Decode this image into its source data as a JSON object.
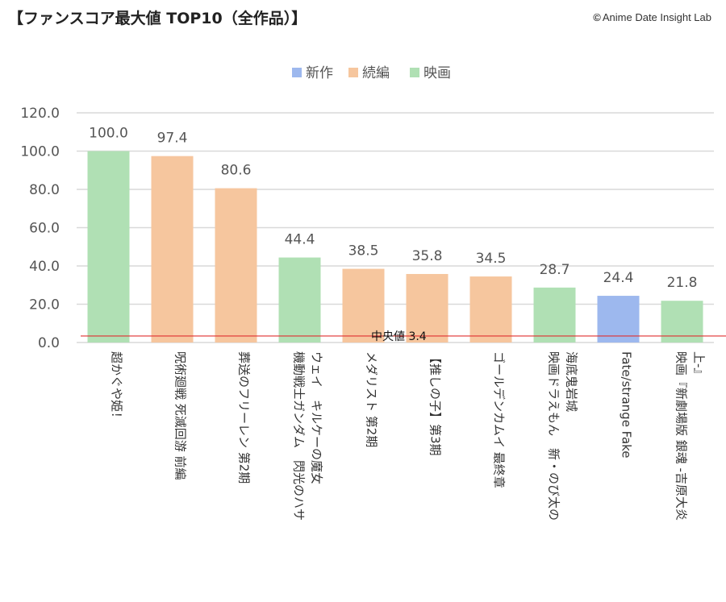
{
  "header": {
    "title": "【ファンスコア最大値 TOP10（全作品）】",
    "credit_symbol": "©",
    "credit": "Anime Date Insight Lab"
  },
  "chart_data": {
    "type": "bar",
    "title": "",
    "xlabel": "",
    "ylabel": "",
    "ylim": [
      0,
      120
    ],
    "ytick_labels": [
      "0.0",
      "20.0",
      "40.0",
      "60.0",
      "80.0",
      "100.0",
      "120.0"
    ],
    "grid": true,
    "legend_position": "top-center",
    "legend": [
      {
        "name": "新作",
        "color": "#9db8ee"
      },
      {
        "name": "続編",
        "color": "#f6c69e"
      },
      {
        "name": "映画",
        "color": "#b0e0b4"
      }
    ],
    "categories": [
      {
        "lines": [
          "超かぐや姫！"
        ],
        "group": "映画",
        "value": 100.0,
        "label": "100.0"
      },
      {
        "lines": [
          "呪術廻戦 死滅回游 前編"
        ],
        "group": "続編",
        "value": 97.4,
        "label": "97.4"
      },
      {
        "lines": [
          "葬送のフリーレン 第2期"
        ],
        "group": "続編",
        "value": 80.6,
        "label": "80.6"
      },
      {
        "lines": [
          "機動戦士ガンダム　閃光のハサ",
          "ウェイ　キルケーの魔女"
        ],
        "group": "映画",
        "value": 44.4,
        "label": "44.4"
      },
      {
        "lines": [
          "メダリスト 第2期"
        ],
        "group": "続編",
        "value": 38.5,
        "label": "38.5"
      },
      {
        "lines": [
          "【推しの子】第3期"
        ],
        "group": "続編",
        "value": 35.8,
        "label": "35.8"
      },
      {
        "lines": [
          "ゴールデンカムイ 最終章"
        ],
        "group": "続編",
        "value": 34.5,
        "label": "34.5"
      },
      {
        "lines": [
          "映画ドラえもん　新・のび太の",
          "海底鬼岩城"
        ],
        "group": "映画",
        "value": 28.7,
        "label": "28.7"
      },
      {
        "lines": [
          "Fate/strange Fake"
        ],
        "group": "新作",
        "value": 24.4,
        "label": "24.4"
      },
      {
        "lines": [
          "映画『新劇場版 銀魂 -吉原大炎",
          "上-』"
        ],
        "group": "映画",
        "value": 21.8,
        "label": "21.8"
      }
    ],
    "reference_line": {
      "label": "中央値 3.4",
      "value": 3.4,
      "color": "#e03030"
    },
    "gridline_color": "#d9d9d9"
  }
}
